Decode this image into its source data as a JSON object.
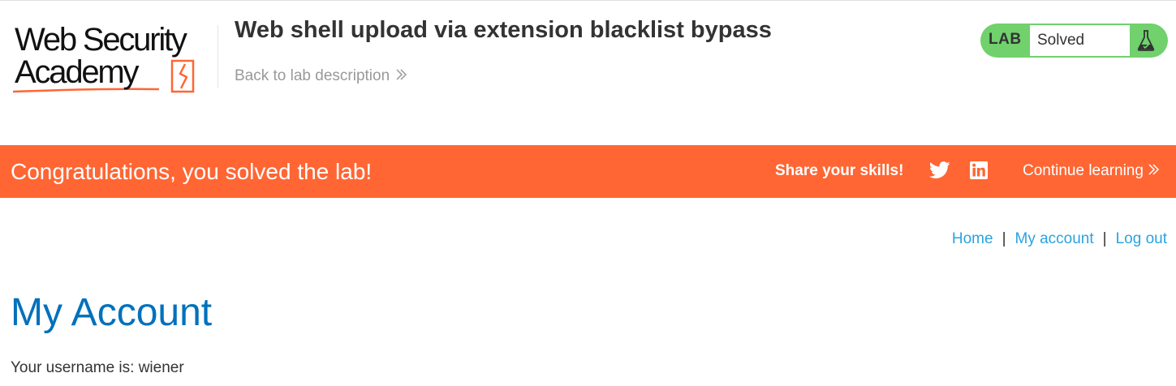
{
  "header": {
    "logo": {
      "line1": "Web Security",
      "line2": "Academy"
    },
    "lab_title": "Web shell upload via extension blacklist bypass",
    "back_link": "Back to lab description",
    "lab_badge": {
      "label": "LAB",
      "status": "Solved",
      "status_color": "#70d16d"
    }
  },
  "banner": {
    "message": "Congratulations, you solved the lab!",
    "share_label": "Share your skills!",
    "continue_label": "Continue learning",
    "color": "#ff6633"
  },
  "nav": {
    "items": [
      "Home",
      "My account",
      "Log out"
    ],
    "separator": "|"
  },
  "main": {
    "title": "My Account",
    "username_text": "Your username is: wiener"
  },
  "icons": {
    "chevron": "double-chevron-right-icon",
    "twitter": "twitter-icon",
    "linkedin": "linkedin-icon",
    "flask": "flask-icon"
  },
  "colors": {
    "title_blue": "#0071bc",
    "link_blue": "#29a3e0",
    "brand_orange": "#ff6633"
  }
}
